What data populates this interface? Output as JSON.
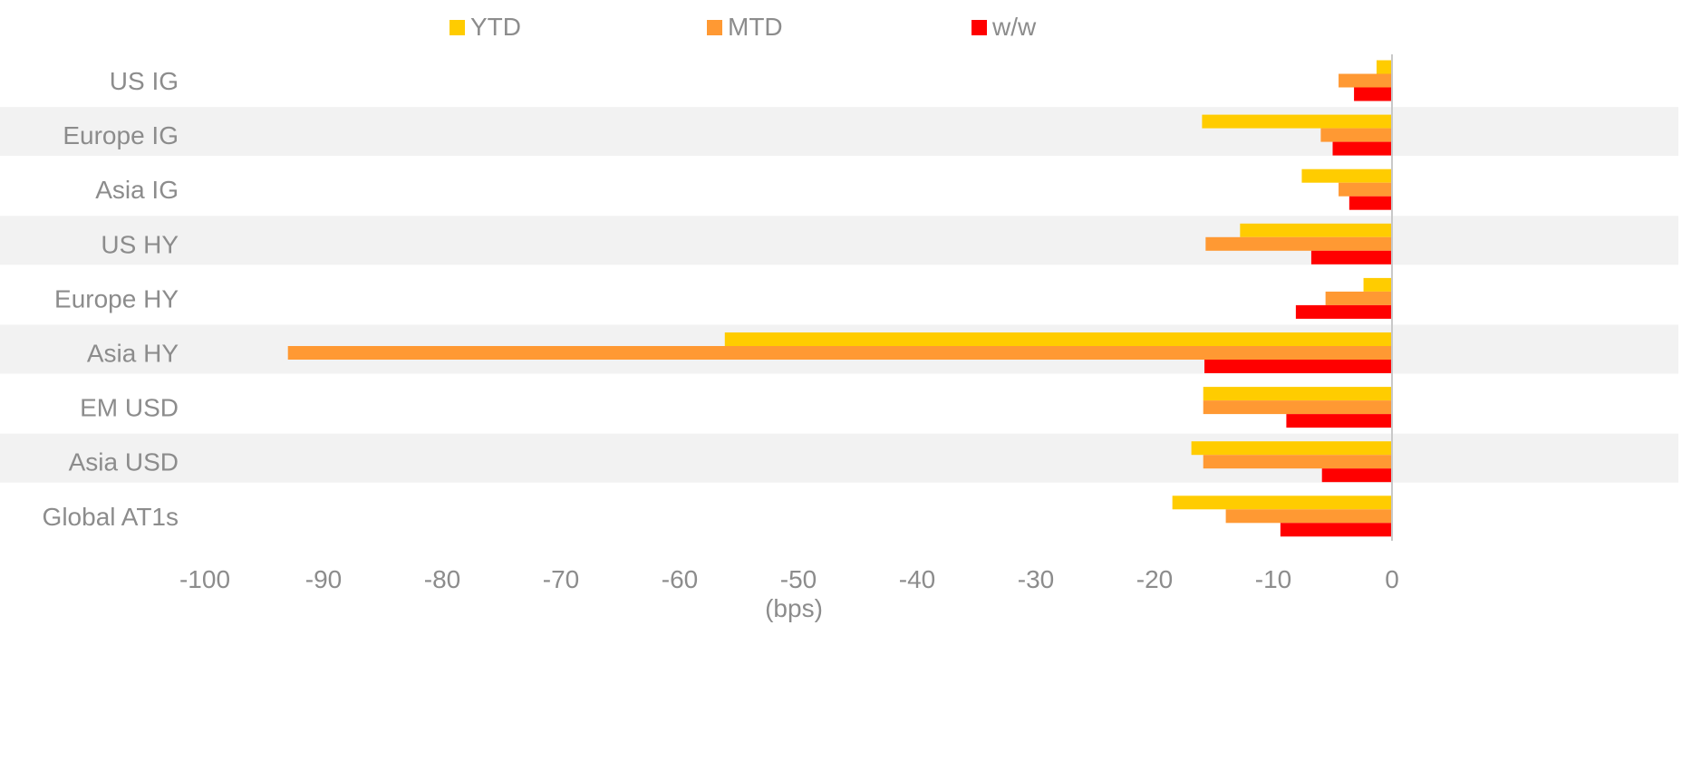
{
  "chart_data": {
    "type": "bar",
    "orientation": "horizontal",
    "title": "",
    "xlabel": "(bps)",
    "ylabel": "",
    "xlim": [
      -100,
      0
    ],
    "x_ticks": [
      -100,
      -90,
      -80,
      -70,
      -60,
      -50,
      -40,
      -30,
      -20,
      -10,
      0
    ],
    "x_tick_labels": [
      "-100",
      "-90",
      "-80",
      "-70",
      "-60",
      "-50",
      "-40",
      "-30",
      "-20",
      "-10",
      "0"
    ],
    "grid": false,
    "legend_position": "top-center",
    "categories": [
      "US IG",
      "Europe IG",
      "Asia IG",
      "US HY",
      "Europe HY",
      "Asia HY",
      "EM USD",
      "Asia USD",
      "Global AT1s"
    ],
    "series": [
      {
        "name": "YTD",
        "color": "#FFCC00",
        "values": [
          -1.3,
          -16,
          -7.6,
          -12.8,
          -2.4,
          -56.2,
          -15.9,
          -16.9,
          -18.5
        ]
      },
      {
        "name": "MTD",
        "color": "#FF9933",
        "values": [
          -4.5,
          -6,
          -4.5,
          -15.7,
          -5.6,
          -93,
          -15.9,
          -15.9,
          -14
        ]
      },
      {
        "name": "w/w",
        "color": "#FF0000",
        "values": [
          -3.2,
          -5,
          -3.6,
          -6.8,
          -8.1,
          -15.8,
          -8.9,
          -5.9,
          -9.4
        ]
      }
    ],
    "band_color": "#F2F2F2",
    "zero_line_color": "#C8C8C8"
  }
}
